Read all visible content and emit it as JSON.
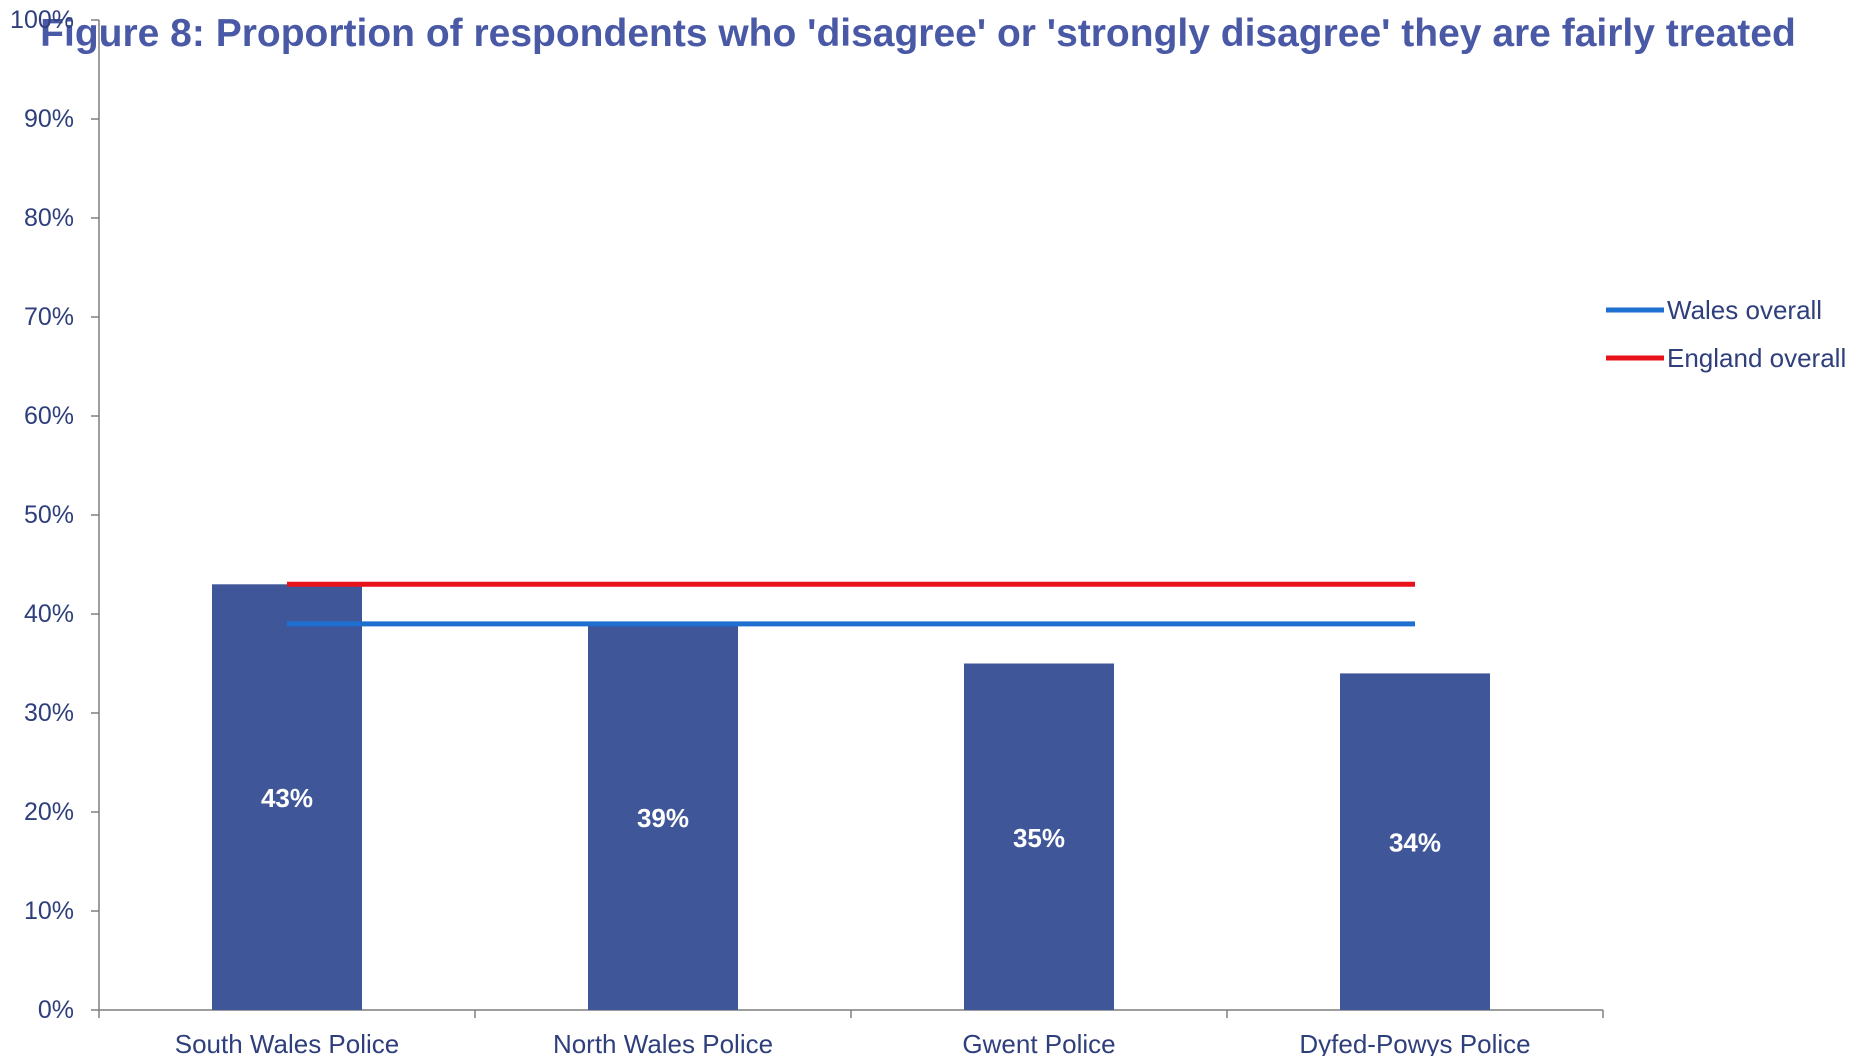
{
  "chart_data": {
    "type": "bar",
    "title": "Figure 8: Proportion of respondents who 'disagree' or 'strongly disagree' they are fairly treated",
    "xlabel": "",
    "ylabel": "",
    "categories": [
      "South Wales Police",
      "North Wales Police",
      "Gwent Police",
      "Dyfed-Powys Police"
    ],
    "values": [
      43,
      39,
      35,
      34
    ],
    "data_labels": [
      "43%",
      "39%",
      "35%",
      "34%"
    ],
    "ylim": [
      0,
      100
    ],
    "yticks": [
      0,
      10,
      20,
      30,
      40,
      50,
      60,
      70,
      80,
      90,
      100
    ],
    "ytick_labels": [
      "0%",
      "10%",
      "20%",
      "30%",
      "40%",
      "50%",
      "60%",
      "70%",
      "80%",
      "90%",
      "100%"
    ],
    "bar_color": "#3f5699",
    "reference_lines": [
      {
        "name": "Wales overall",
        "value": 39,
        "color": "#1f6fd1"
      },
      {
        "name": "England overall",
        "value": 43,
        "color": "#e8131a"
      }
    ],
    "legend_position": "right",
    "grid": false
  }
}
